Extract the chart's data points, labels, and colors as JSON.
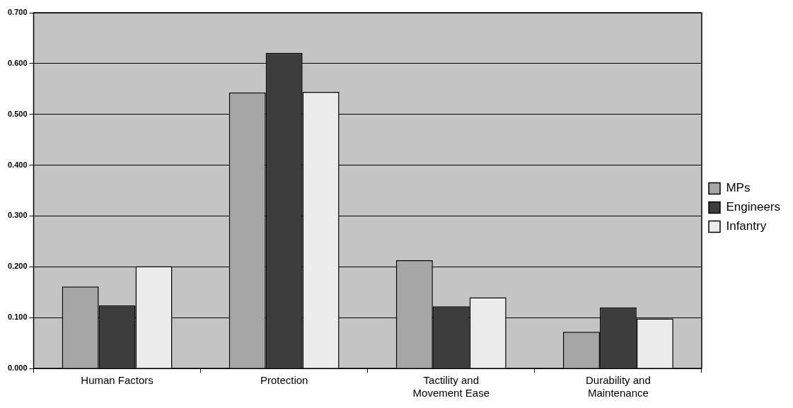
{
  "chart_data": {
    "type": "bar",
    "categories": [
      "Human Factors",
      "Protection",
      "Tactility and Movement Ease",
      "Durability and Maintenance"
    ],
    "series": [
      {
        "name": "MPs",
        "color": "#a6a6a6",
        "values": [
          0.161,
          0.543,
          0.213,
          0.072
        ]
      },
      {
        "name": "Engineers",
        "color": "#3c3c3c",
        "values": [
          0.124,
          0.621,
          0.122,
          0.12
        ]
      },
      {
        "name": "Infantry",
        "color": "#ececec",
        "values": [
          0.201,
          0.544,
          0.14,
          0.098
        ]
      }
    ],
    "ylim": [
      0,
      0.7
    ],
    "yticks": [
      {
        "value": 0,
        "label": "0.000"
      },
      {
        "value": 0.1,
        "label": "0.100"
      },
      {
        "value": 0.2,
        "label": "0.200"
      },
      {
        "value": 0.3,
        "label": "0.300"
      },
      {
        "value": 0.4,
        "label": "0.400"
      },
      {
        "value": 0.5,
        "label": "0.500"
      },
      {
        "value": 0.6,
        "label": "0.600"
      },
      {
        "value": 0.7,
        "label": "0.700"
      }
    ],
    "grid": "y",
    "legend": "right"
  }
}
